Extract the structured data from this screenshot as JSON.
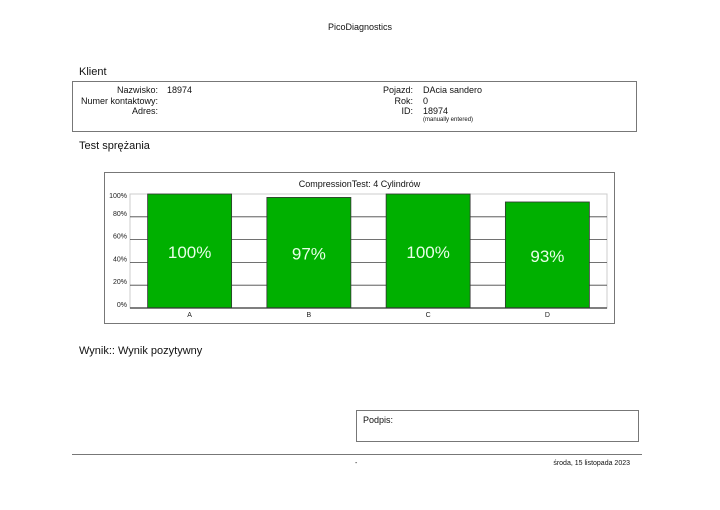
{
  "header": {
    "title": "PicoDiagnostics"
  },
  "client": {
    "section_title": "Klient",
    "nazwisko_label": "Nazwisko:",
    "nazwisko": "18974",
    "kontakt_label": "Numer kontaktowy:",
    "kontakt": "",
    "adres_label": "Adres:",
    "adres": "",
    "pojazd_label": "Pojazd:",
    "pojazd": "DAcia sandero",
    "rok_label": "Rok:",
    "rok": "0",
    "id_label": "ID:",
    "id": "18974",
    "id_note": "(manually entered)"
  },
  "test": {
    "section_title": "Test sprężania"
  },
  "chart_data": {
    "type": "bar",
    "title": "CompressionTest: 4 Cylindrów",
    "categories": [
      "A",
      "B",
      "C",
      "D"
    ],
    "values": [
      100,
      97,
      100,
      93
    ],
    "data_labels": [
      "100%",
      "97%",
      "100%",
      "93%"
    ],
    "yticks": [
      "0%",
      "20%",
      "40%",
      "60%",
      "80%",
      "100%"
    ],
    "ylim": [
      0,
      100
    ],
    "bar_color": "#00b000",
    "grid": true
  },
  "result": {
    "text": "Wynik:: Wynik pozytywny"
  },
  "signature": {
    "label": "Podpis:"
  },
  "footer": {
    "left": "-",
    "date": "środa, 15 listopada 2023"
  }
}
